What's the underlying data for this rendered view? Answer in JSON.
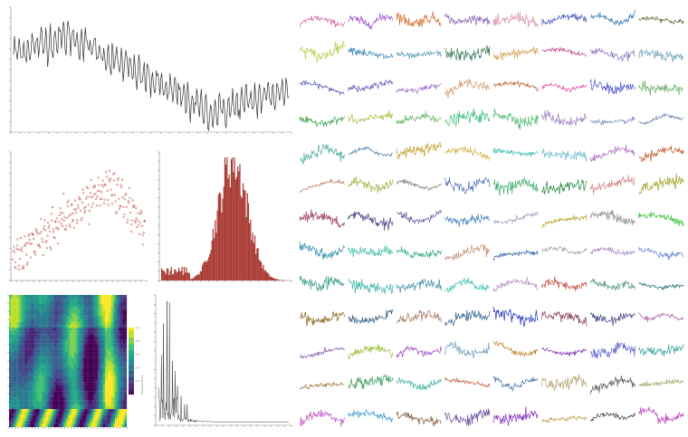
{
  "dashboard": {
    "panels": [
      {
        "id": "line",
        "chart_data": {
          "type": "line",
          "title": "",
          "xlabel": "",
          "ylabel": "",
          "points": 300,
          "trend": "rise-to-peak-then-fall-then-recover",
          "color": "#333333"
        }
      },
      {
        "id": "scatter",
        "chart_data": {
          "type": "scatter",
          "title": "",
          "xlabel": "",
          "ylabel": "",
          "points": 240,
          "trend": "rising-with-peak-near-end",
          "color": "#c0504d"
        }
      },
      {
        "id": "histogram",
        "chart_data": {
          "type": "bar",
          "title": "",
          "xlabel": "",
          "ylabel": "",
          "bins": 120,
          "shape": "approximately-normal",
          "color": "#a93b34"
        }
      },
      {
        "id": "wavelet",
        "chart_data": {
          "type": "heatmap",
          "title": "",
          "colormap": "viridis",
          "colorbar_label": "Wavelet Power",
          "colorbar_ticks": [
            "0.2",
            "0.4",
            "0.6",
            "0.8",
            "1.0"
          ]
        }
      },
      {
        "id": "periodogram",
        "chart_data": {
          "type": "line",
          "title": "",
          "xlabel": "",
          "ylabel": "",
          "shape": "tall-spikes-at-low-frequency-decaying",
          "color": "#333333"
        }
      },
      {
        "id": "small-multiples",
        "chart_data": {
          "type": "line",
          "rows": 13,
          "cols": 8,
          "description_colors": [
            "#d45ca6",
            "#9a4fd1",
            "#d2691e",
            "#8a5db0",
            "#d98fb0",
            "#3a4fb8",
            "#3a7db8",
            "#556b2f",
            "#b5cc44",
            "#4a8fb8",
            "#5a9fb8",
            "#3a7a5a",
            "#d2a050",
            "#c04080",
            "#8a70b8",
            "#6a9fb8",
            "#4a4ab0",
            "#6a5ab8",
            "#9a70c8",
            "#d8a070",
            "#c06030",
            "#e040a0",
            "#5050d0",
            "#70b070",
            "#40a050",
            "#a0c040",
            "#60b060",
            "#40c080",
            "#4fb870",
            "#a080c0",
            "#8090c0",
            "#7080b0",
            "#4fb0a0",
            "#4a7aa8",
            "#c0a030",
            "#d0b040",
            "#40c0b0",
            "#70c0d0",
            "#b070c0",
            "#c05020",
            "#c08060",
            "#a0b040",
            "#808080",
            "#4a6ab8",
            "#40b070",
            "#2a8a40",
            "#d08080",
            "#a0a020",
            "#a04060",
            "#404080",
            "#5050a0",
            "#4080c0",
            "#a0a0c0",
            "#b0a020",
            "#909090",
            "#30c030",
            "#3090b0",
            "#40c0a0",
            "#40b080",
            "#c09070",
            "#3060a0",
            "#a0a0b0",
            "#a080c0",
            "#6080d0",
            "#40a090",
            "#30b0a0",
            "#3a8aa0",
            "#40c0b0",
            "#b090c0",
            "#c05040",
            "#5a9a8a",
            "#2a7070",
            "#8a6a20",
            "#3a6080",
            "#a07050",
            "#306090",
            "#2030c0",
            "#8a4060",
            "#404080",
            "#a050a0",
            "#8050a0",
            "#a0c040",
            "#a050c0",
            "#70a0c0",
            "#c08030",
            "#8030b0",
            "#6060d0",
            "#30a0a0",
            "#a07040",
            "#40a060",
            "#40b0a0",
            "#c06040",
            "#4070a0",
            "#b0a070",
            "#606060",
            "#a0a060",
            "#c050c0",
            "#40a0d0",
            "#806040",
            "#7050a0",
            "#8030c0",
            "#c0a040",
            "#404040",
            "#c040c0",
            "#2090c0",
            "#40a060"
          ]
        }
      }
    ]
  }
}
